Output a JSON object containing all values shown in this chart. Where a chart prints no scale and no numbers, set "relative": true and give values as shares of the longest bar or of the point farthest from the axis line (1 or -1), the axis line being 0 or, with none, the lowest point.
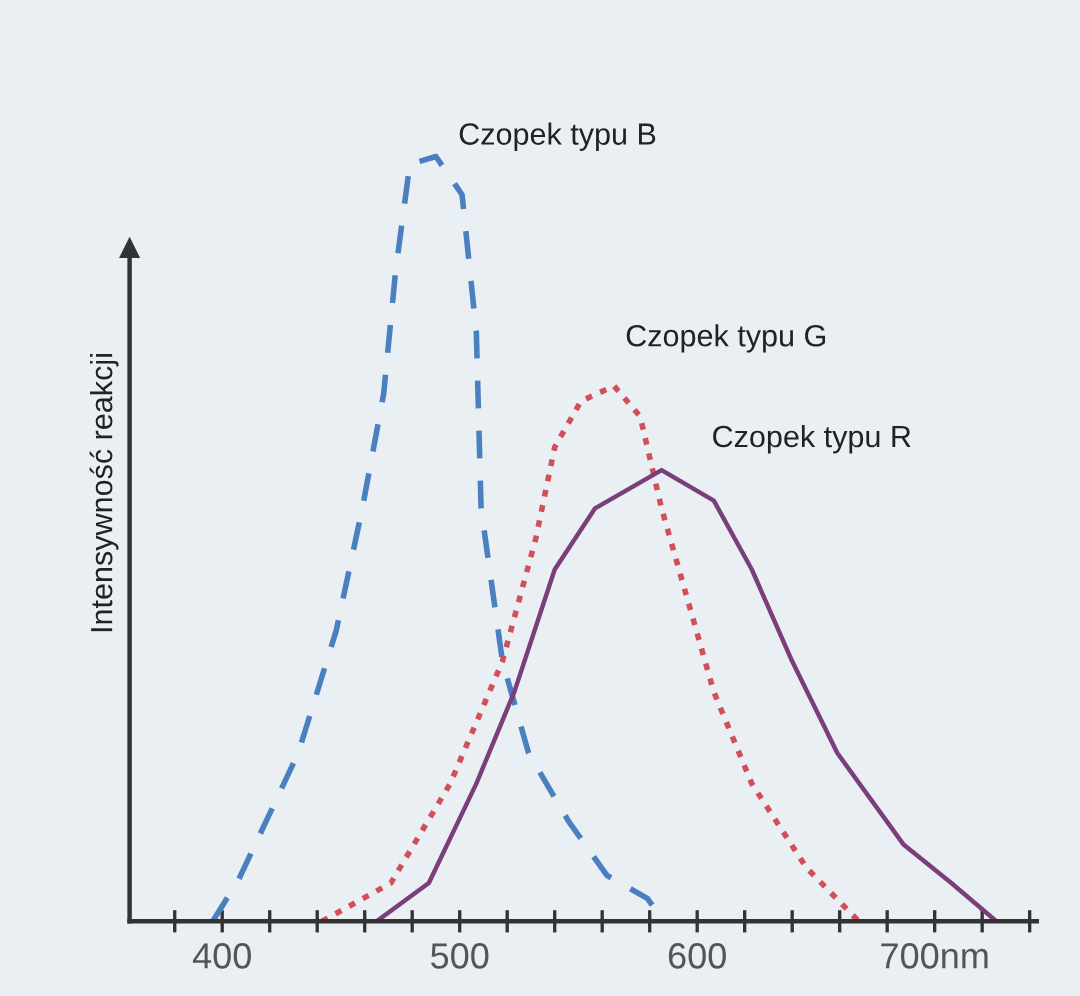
{
  "chart_data": {
    "type": "line",
    "relative": true,
    "ylabel": "Intensywność reakcji",
    "grid": false,
    "marker": "none",
    "xlim": [
      361,
      743
    ],
    "xticks": [
      {
        "value": 380,
        "label": null
      },
      400,
      {
        "value": 420,
        "label": null
      },
      {
        "value": 440,
        "label": null
      },
      {
        "value": 460,
        "label": null
      },
      {
        "value": 480,
        "label": null
      },
      500,
      {
        "value": 520,
        "label": null
      },
      {
        "value": 540,
        "label": null
      },
      {
        "value": 560,
        "label": null
      },
      {
        "value": 580,
        "label": null
      },
      600,
      {
        "value": 620,
        "label": null
      },
      {
        "value": 640,
        "label": null
      },
      {
        "value": 660,
        "label": null
      },
      {
        "value": 680,
        "label": null
      },
      {
        "value": 700,
        "label": "700nm"
      },
      {
        "value": 720,
        "label": null
      },
      {
        "value": 740,
        "label": null
      }
    ],
    "series": [
      {
        "name": "Czopek typu B",
        "color": "#4a7fc0",
        "line_style": "dashed",
        "x": [
          396,
          407,
          432,
          448,
          459,
          468,
          473,
          479,
          490,
          501,
          507,
          509,
          518,
          529,
          546,
          562,
          579,
          586
        ],
        "values": [
          0,
          0.055,
          0.22,
          0.38,
          0.54,
          0.69,
          0.85,
          0.99,
          1.0,
          0.95,
          0.77,
          0.54,
          0.34,
          0.22,
          0.13,
          0.06,
          0.03,
          0
        ]
      },
      {
        "name": "Czopek typu G",
        "color": "#d0505a",
        "line_style": "dotted",
        "x": [
          442,
          471,
          496,
          518,
          532,
          540,
          551,
          565,
          576,
          585,
          596,
          607,
          623,
          646,
          668
        ],
        "values": [
          0,
          0.05,
          0.18,
          0.34,
          0.5,
          0.62,
          0.68,
          0.7,
          0.66,
          0.54,
          0.42,
          0.3,
          0.18,
          0.07,
          0
        ]
      },
      {
        "name": "Czopek typu R",
        "color": "#7a3f7a",
        "line_style": "solid",
        "x": [
          465,
          487,
          507,
          523,
          540,
          557,
          585,
          607,
          623,
          640,
          659,
          687,
          707,
          726
        ],
        "values": [
          0,
          0.05,
          0.18,
          0.3,
          0.46,
          0.54,
          0.59,
          0.55,
          0.46,
          0.34,
          0.22,
          0.1,
          0.05,
          0
        ]
      }
    ]
  }
}
